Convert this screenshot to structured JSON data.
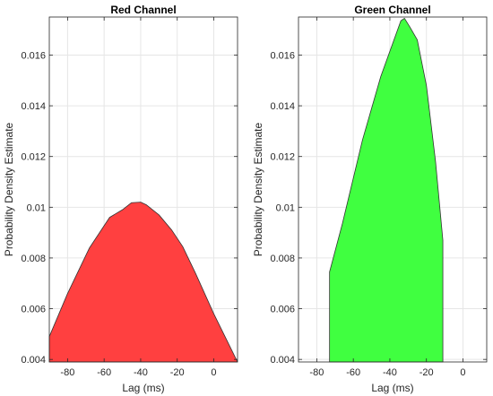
{
  "chart_data": [
    {
      "type": "area",
      "title": "Red Channel",
      "xlabel": "Lag (ms)",
      "ylabel": "Probability Density Estimate",
      "xlim": [
        -90,
        13
      ],
      "ylim": [
        0.0039,
        0.0175
      ],
      "xticks": [
        -80,
        -60,
        -40,
        -20,
        0
      ],
      "xtick_labels": [
        "-80",
        "-60",
        "-40",
        "-20",
        "0"
      ],
      "yticks": [
        0.004,
        0.006,
        0.008,
        0.01,
        0.012,
        0.014,
        0.016
      ],
      "ytick_labels": [
        "0.004",
        "0.006",
        "0.008",
        "0.01",
        "0.012",
        "0.014",
        "0.016"
      ],
      "grid": true,
      "color": "#ff4040",
      "series": [
        {
          "x": [
            -90,
            -80,
            -68,
            -57,
            -50,
            -45,
            -40,
            -37,
            -30,
            -23,
            -17,
            -10,
            0,
            13
          ],
          "y": [
            0.0049,
            0.0066,
            0.0084,
            0.0096,
            0.0099,
            0.01018,
            0.0102,
            0.0101,
            0.0097,
            0.0091,
            0.00845,
            0.0074,
            0.0058,
            0.0039
          ]
        }
      ]
    },
    {
      "type": "area",
      "title": "Green Channel",
      "xlabel": "Lag (ms)",
      "ylabel": "Probability Density Estimate",
      "xlim": [
        -90,
        13
      ],
      "ylim": [
        0.0039,
        0.0175
      ],
      "xticks": [
        -80,
        -60,
        -40,
        -20,
        0
      ],
      "xtick_labels": [
        "-80",
        "-60",
        "-40",
        "-20",
        "0"
      ],
      "yticks": [
        0.004,
        0.006,
        0.008,
        0.01,
        0.012,
        0.014,
        0.016
      ],
      "ytick_labels": [
        "0.004",
        "0.006",
        "0.008",
        "0.01",
        "0.012",
        "0.014",
        "0.016"
      ],
      "grid": true,
      "color": "#40ff40",
      "series": [
        {
          "x": [
            -73,
            -73,
            -66,
            -55,
            -45,
            -38,
            -34,
            -32,
            -29,
            -25,
            -20,
            -15,
            -11,
            -11
          ],
          "y": [
            0.0039,
            0.00745,
            0.00935,
            0.01265,
            0.01515,
            0.01655,
            0.01735,
            0.01745,
            0.0171,
            0.0166,
            0.0148,
            0.0118,
            0.0087,
            0.0039
          ]
        }
      ]
    }
  ]
}
